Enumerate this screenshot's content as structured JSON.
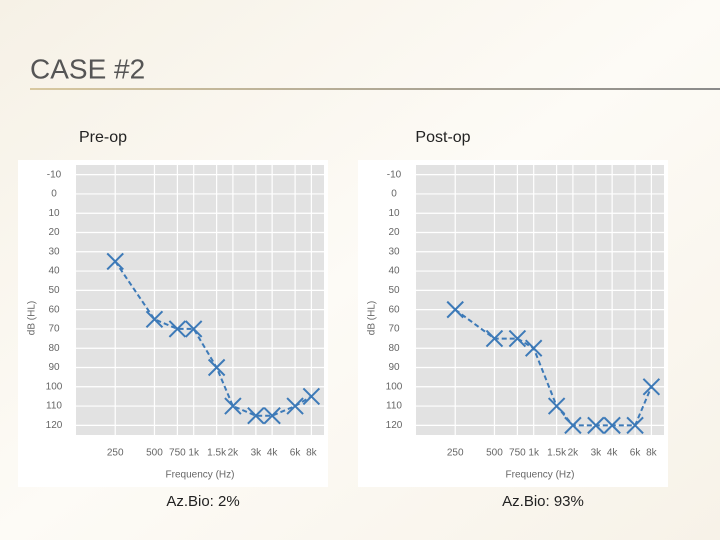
{
  "title": "CASE #2",
  "chart_data": [
    {
      "type": "line",
      "title": "Pre-op",
      "caption": "Az.Bio: 2%",
      "x_label": "Frequency (Hz)",
      "y_label": "dB (HL)",
      "x": [
        250,
        500,
        750,
        1000,
        1500,
        2000,
        3000,
        4000,
        6000,
        8000
      ],
      "values": [
        35,
        65,
        70,
        70,
        90,
        110,
        115,
        115,
        110,
        105
      ],
      "color": "#3d7ab8",
      "x_log": true,
      "y_inverted": true,
      "grid": true,
      "xlim": [
        125,
        10000
      ],
      "ylim": [
        -15,
        125
      ],
      "xticks": [
        250,
        500,
        750,
        {
          "value": 1000,
          "label": "1k"
        },
        {
          "value": 1500,
          "label": "1.5k"
        },
        {
          "value": 2000,
          "label": "2k"
        },
        {
          "value": 3000,
          "label": "3k"
        },
        {
          "value": 4000,
          "label": "4k"
        },
        {
          "value": 6000,
          "label": "6k"
        },
        {
          "value": 8000,
          "label": "8k"
        }
      ],
      "yticks": [
        -10,
        0,
        10,
        20,
        30,
        40,
        50,
        60,
        70,
        80,
        90,
        100,
        110,
        120
      ]
    },
    {
      "type": "line",
      "title": "Post-op",
      "caption": "Az.Bio: 93%",
      "x_label": "Frequency (Hz)",
      "y_label": "dB (HL)",
      "x": [
        250,
        500,
        750,
        1000,
        1500,
        2000,
        3000,
        4000,
        6000,
        8000
      ],
      "values": [
        60,
        75,
        75,
        80,
        110,
        120,
        120,
        120,
        120,
        100
      ],
      "color": "#3d7ab8",
      "x_log": true,
      "y_inverted": true,
      "grid": true,
      "xlim": [
        125,
        10000
      ],
      "ylim": [
        -15,
        125
      ],
      "xticks": [
        250,
        500,
        750,
        {
          "value": 1000,
          "label": "1k"
        },
        {
          "value": 1500,
          "label": "1.5k"
        },
        {
          "value": 2000,
          "label": "2k"
        },
        {
          "value": 3000,
          "label": "3k"
        },
        {
          "value": 4000,
          "label": "4k"
        },
        {
          "value": 6000,
          "label": "6k"
        },
        {
          "value": 8000,
          "label": "8k"
        }
      ],
      "yticks": [
        -10,
        0,
        10,
        20,
        30,
        40,
        50,
        60,
        70,
        80,
        90,
        100,
        110,
        120
      ]
    }
  ]
}
